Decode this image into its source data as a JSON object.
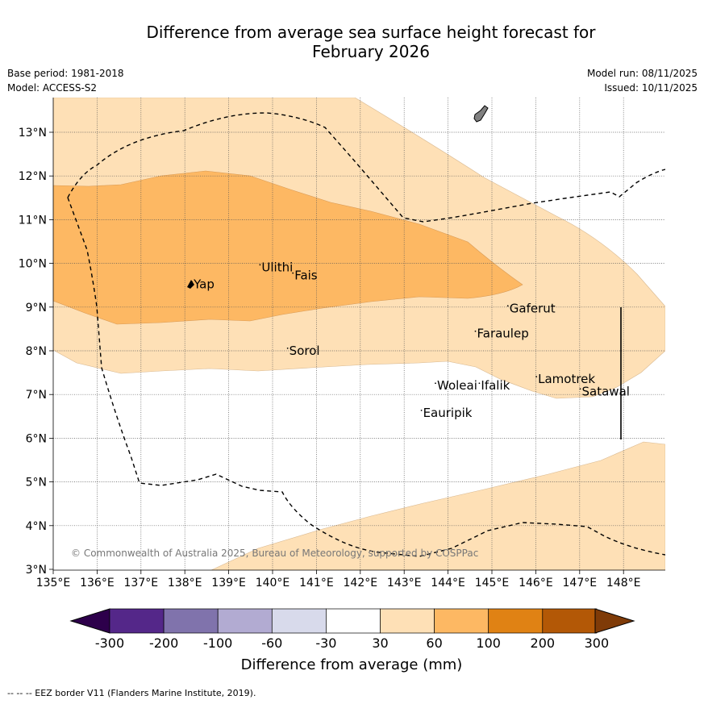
{
  "title_line1": "Difference from average sea surface height forecast for",
  "title_line2": "February 2026",
  "base_period": "Base period: 1981-2018",
  "model": "Model: ACCESS-S2",
  "model_run": "Model run: 08/11/2025",
  "issued": "Issued: 10/11/2025",
  "map": {
    "lon_ticks": [
      "135°E",
      "136°E",
      "137°E",
      "138°E",
      "139°E",
      "140°E",
      "141°E",
      "142°E",
      "143°E",
      "144°E",
      "145°E",
      "146°E",
      "147°E",
      "148°E"
    ],
    "lat_ticks": [
      "3°N",
      "4°N",
      "5°N",
      "6°N",
      "7°N",
      "8°N",
      "9°N",
      "10°N",
      "11°N",
      "12°N",
      "13°N"
    ],
    "places": [
      {
        "name": "Ulithi",
        "lon": 139.75,
        "lat": 9.82
      },
      {
        "name": "Fais",
        "lon": 140.5,
        "lat": 9.63
      },
      {
        "name": "Yap",
        "lon": 138.2,
        "lat": 9.43
      },
      {
        "name": "Gaferut",
        "lon": 145.4,
        "lat": 8.88
      },
      {
        "name": "Faraulep",
        "lon": 144.66,
        "lat": 8.3
      },
      {
        "name": "Sorol",
        "lon": 140.38,
        "lat": 7.91
      },
      {
        "name": "Lamotrek",
        "lon": 146.05,
        "lat": 7.26
      },
      {
        "name": "Woleai",
        "lon": 143.75,
        "lat": 7.11
      },
      {
        "name": "Ifalik",
        "lon": 144.75,
        "lat": 7.11
      },
      {
        "name": "Satawal",
        "lon": 147.05,
        "lat": 6.98
      },
      {
        "name": "Eauripik",
        "lon": 143.43,
        "lat": 6.49
      }
    ],
    "copyright": "© Commonwealth of Australia 2025, Bureau of Meteorology, supported by COSPPac"
  },
  "colorbar": {
    "ticks": [
      "-300",
      "-200",
      "-100",
      "-60",
      "-30",
      "30",
      "60",
      "100",
      "200",
      "300"
    ],
    "colors": [
      "#542789",
      "#8073ac",
      "#b2abd2",
      "#d8daeb",
      "#ffffff",
      "#fee0b6",
      "#fdb863",
      "#e08214",
      "#b35806"
    ],
    "under_color": "#2d004b",
    "over_color": "#7f3b08",
    "label": "Difference from average (mm)"
  },
  "legend_note": "--  --  -- EEZ border V11 (Flanders Marine Institute, 2019)."
}
